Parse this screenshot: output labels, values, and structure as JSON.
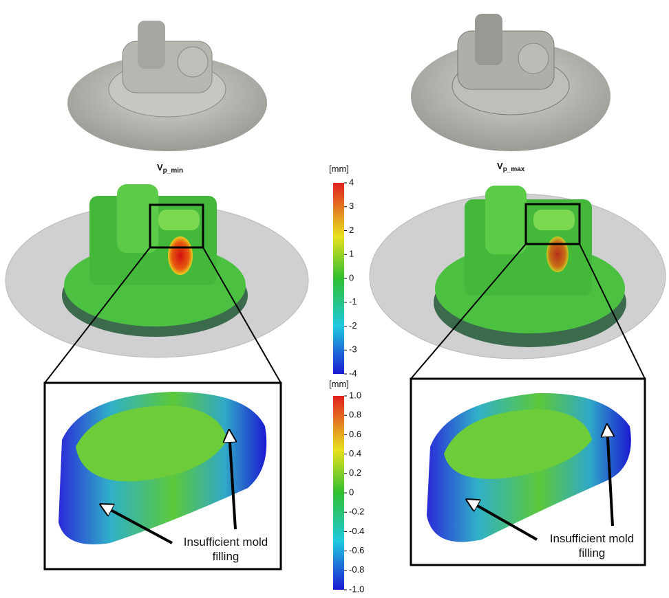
{
  "panels": [
    {
      "label": {
        "main": "V",
        "sub": "p_min"
      },
      "annotation": [
        "Insufficient mold",
        "filling"
      ]
    },
    {
      "label": {
        "main": "V",
        "sub": "p_max"
      },
      "annotation": [
        "Insufficient mold",
        "filling"
      ]
    }
  ],
  "colorbars": [
    {
      "unit": "[mm]",
      "ticks": [
        "4",
        "3",
        "2",
        "1",
        "0",
        "-1",
        "-2",
        "-3",
        "-4"
      ]
    },
    {
      "unit": "[mm]",
      "ticks": [
        "1.0",
        "0.8",
        "0.6",
        "0.4",
        "0.2",
        "0",
        "-0.2",
        "-0.4",
        "-0.6",
        "-0.8",
        "-1.0"
      ]
    }
  ]
}
